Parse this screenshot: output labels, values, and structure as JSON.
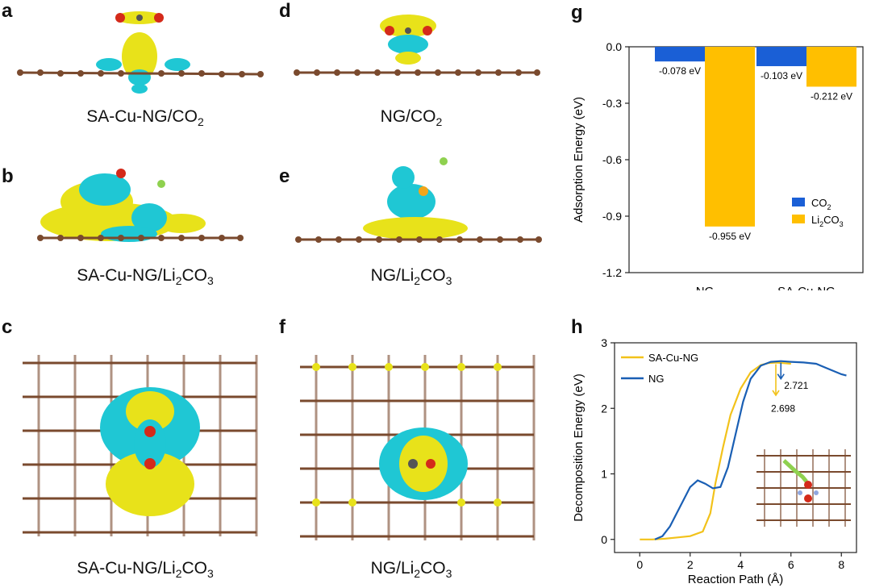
{
  "panels": {
    "a": {
      "letter": "a",
      "caption_main": "SA-Cu-NG/CO",
      "caption_sub": "2",
      "caption_tail": ""
    },
    "b": {
      "letter": "b",
      "caption_main": "SA-Cu-NG/Li",
      "caption_sub": "2",
      "caption_mid": "CO",
      "caption_sub2": "3"
    },
    "c": {
      "letter": "c",
      "caption_main": "SA-Cu-NG/Li",
      "caption_sub": "2",
      "caption_mid": "CO",
      "caption_sub2": "3"
    },
    "d": {
      "letter": "d",
      "caption_main": "NG/CO",
      "caption_sub": "2",
      "caption_tail": ""
    },
    "e": {
      "letter": "e",
      "caption_main": "NG/Li",
      "caption_sub": "2",
      "caption_mid": "CO",
      "caption_sub2": "3"
    },
    "f": {
      "letter": "f",
      "caption_main": "NG/Li",
      "caption_sub": "2",
      "caption_mid": "CO",
      "caption_sub2": "3"
    },
    "g": {
      "letter": "g"
    },
    "h": {
      "letter": "h"
    }
  },
  "colors": {
    "carbon": "#7a4a2e",
    "cyan": "#1fc7d4",
    "yellow": "#e8e21a",
    "co2_blue": "#1a5fd6",
    "li2co3_orange": "#ffbf00",
    "ng_line": "#1a5fb4",
    "sacung_line": "#f2c21a",
    "li_green": "#8fd14f",
    "oxygen_red": "#d42a1a"
  },
  "chart_data": [
    {
      "id": "g",
      "type": "bar",
      "title": "",
      "ylabel": "Adsorption Energy (eV)",
      "xlabel": "",
      "ylim": [
        -1.2,
        0.0
      ],
      "yticks": [
        "0.0",
        "-0.3",
        "-0.6",
        "-0.9",
        "-1.2"
      ],
      "yticks_values": [
        0.0,
        -0.3,
        -0.6,
        -0.9,
        -1.2
      ],
      "categories": [
        "NG",
        "SA-Cu-NG"
      ],
      "series": [
        {
          "name_main": "CO",
          "name_sub": "2",
          "name_tail": "",
          "values": [
            -0.078,
            -0.103
          ],
          "labels": [
            "-0.078 eV",
            "-0.103 eV"
          ]
        },
        {
          "name_main": "Li",
          "name_sub": "2",
          "name_tail": "CO",
          "name_sub2": "3",
          "values": [
            -0.955,
            -0.212
          ],
          "labels": [
            "-0.955 eV",
            "-0.212 eV"
          ]
        }
      ],
      "legend_position": "bottom-right"
    },
    {
      "id": "h",
      "type": "line",
      "title": "",
      "xlabel": "Reaction Path (Å)",
      "ylabel": "Decomposition Energy (eV)",
      "xlim": [
        -1,
        8.6
      ],
      "ylim": [
        -0.2,
        3.0
      ],
      "xticks": [
        "0",
        "2",
        "4",
        "6",
        "8"
      ],
      "xticks_values": [
        0,
        2,
        4,
        6,
        8
      ],
      "yticks": [
        "0",
        "1",
        "2",
        "3"
      ],
      "yticks_values": [
        0,
        1,
        2,
        3
      ],
      "series": [
        {
          "name": "SA-Cu-NG",
          "x": [
            0.0,
            0.5,
            1.0,
            1.5,
            2.0,
            2.5,
            2.8,
            3.0,
            3.3,
            3.6,
            4.0,
            4.4,
            4.8,
            5.1,
            5.4,
            5.7,
            6.0
          ],
          "y": [
            0.0,
            0.0,
            0.01,
            0.03,
            0.05,
            0.12,
            0.4,
            0.85,
            1.4,
            1.9,
            2.3,
            2.55,
            2.66,
            2.69,
            2.698,
            2.69,
            2.68
          ]
        },
        {
          "name": "NG",
          "x": [
            0.6,
            0.9,
            1.2,
            1.6,
            2.0,
            2.3,
            2.6,
            2.9,
            3.2,
            3.5,
            3.8,
            4.1,
            4.4,
            4.8,
            5.2,
            5.6,
            6.0,
            6.5,
            7.0,
            7.5,
            8.0,
            8.2
          ],
          "y": [
            0.0,
            0.05,
            0.2,
            0.5,
            0.8,
            0.9,
            0.85,
            0.78,
            0.8,
            1.1,
            1.6,
            2.1,
            2.45,
            2.65,
            2.71,
            2.721,
            2.71,
            2.7,
            2.68,
            2.6,
            2.52,
            2.5
          ]
        }
      ],
      "annotations": [
        {
          "text": "2.721",
          "series": "NG",
          "color": "#1a5fb4"
        },
        {
          "text": "2.698",
          "series": "SA-Cu-NG",
          "color": "#f2c21a"
        }
      ],
      "legend_position": "top-left"
    }
  ]
}
